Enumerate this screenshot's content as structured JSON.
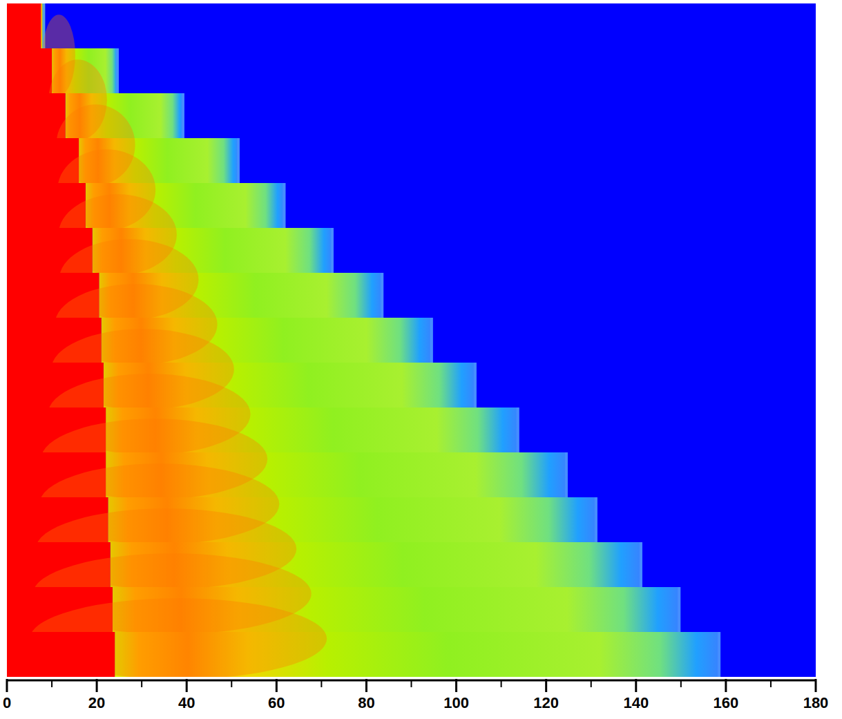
{
  "chart_data": {
    "type": "strip",
    "color": "#0000ff",
    "xlim": [
      0,
      180
    ],
    "xticks": [
      0,
      20,
      40,
      60,
      80,
      100,
      120,
      140,
      160,
      180
    ],
    "minor_xticks": [
      10,
      30,
      50,
      70,
      90,
      110,
      130,
      150,
      170
    ],
    "rows": [
      {
        "interface": 7.5,
        "front": 8.5
      },
      {
        "interface": 10,
        "front": 24.9
      },
      {
        "interface": 13,
        "front": 39.5
      },
      {
        "interface": 16,
        "front": 51.8
      },
      {
        "interface": 17.5,
        "front": 62
      },
      {
        "interface": 19,
        "front": 72.7
      },
      {
        "interface": 20.5,
        "front": 83.8
      },
      {
        "interface": 21,
        "front": 94.8
      },
      {
        "interface": 21.5,
        "front": 104.5
      },
      {
        "interface": 22,
        "front": 114
      },
      {
        "interface": 22,
        "front": 124.8
      },
      {
        "interface": 22.5,
        "front": 131.4
      },
      {
        "interface": 23,
        "front": 141.4
      },
      {
        "interface": 23.5,
        "front": 149.9
      },
      {
        "interface": 24,
        "front": 158.8
      }
    ]
  }
}
